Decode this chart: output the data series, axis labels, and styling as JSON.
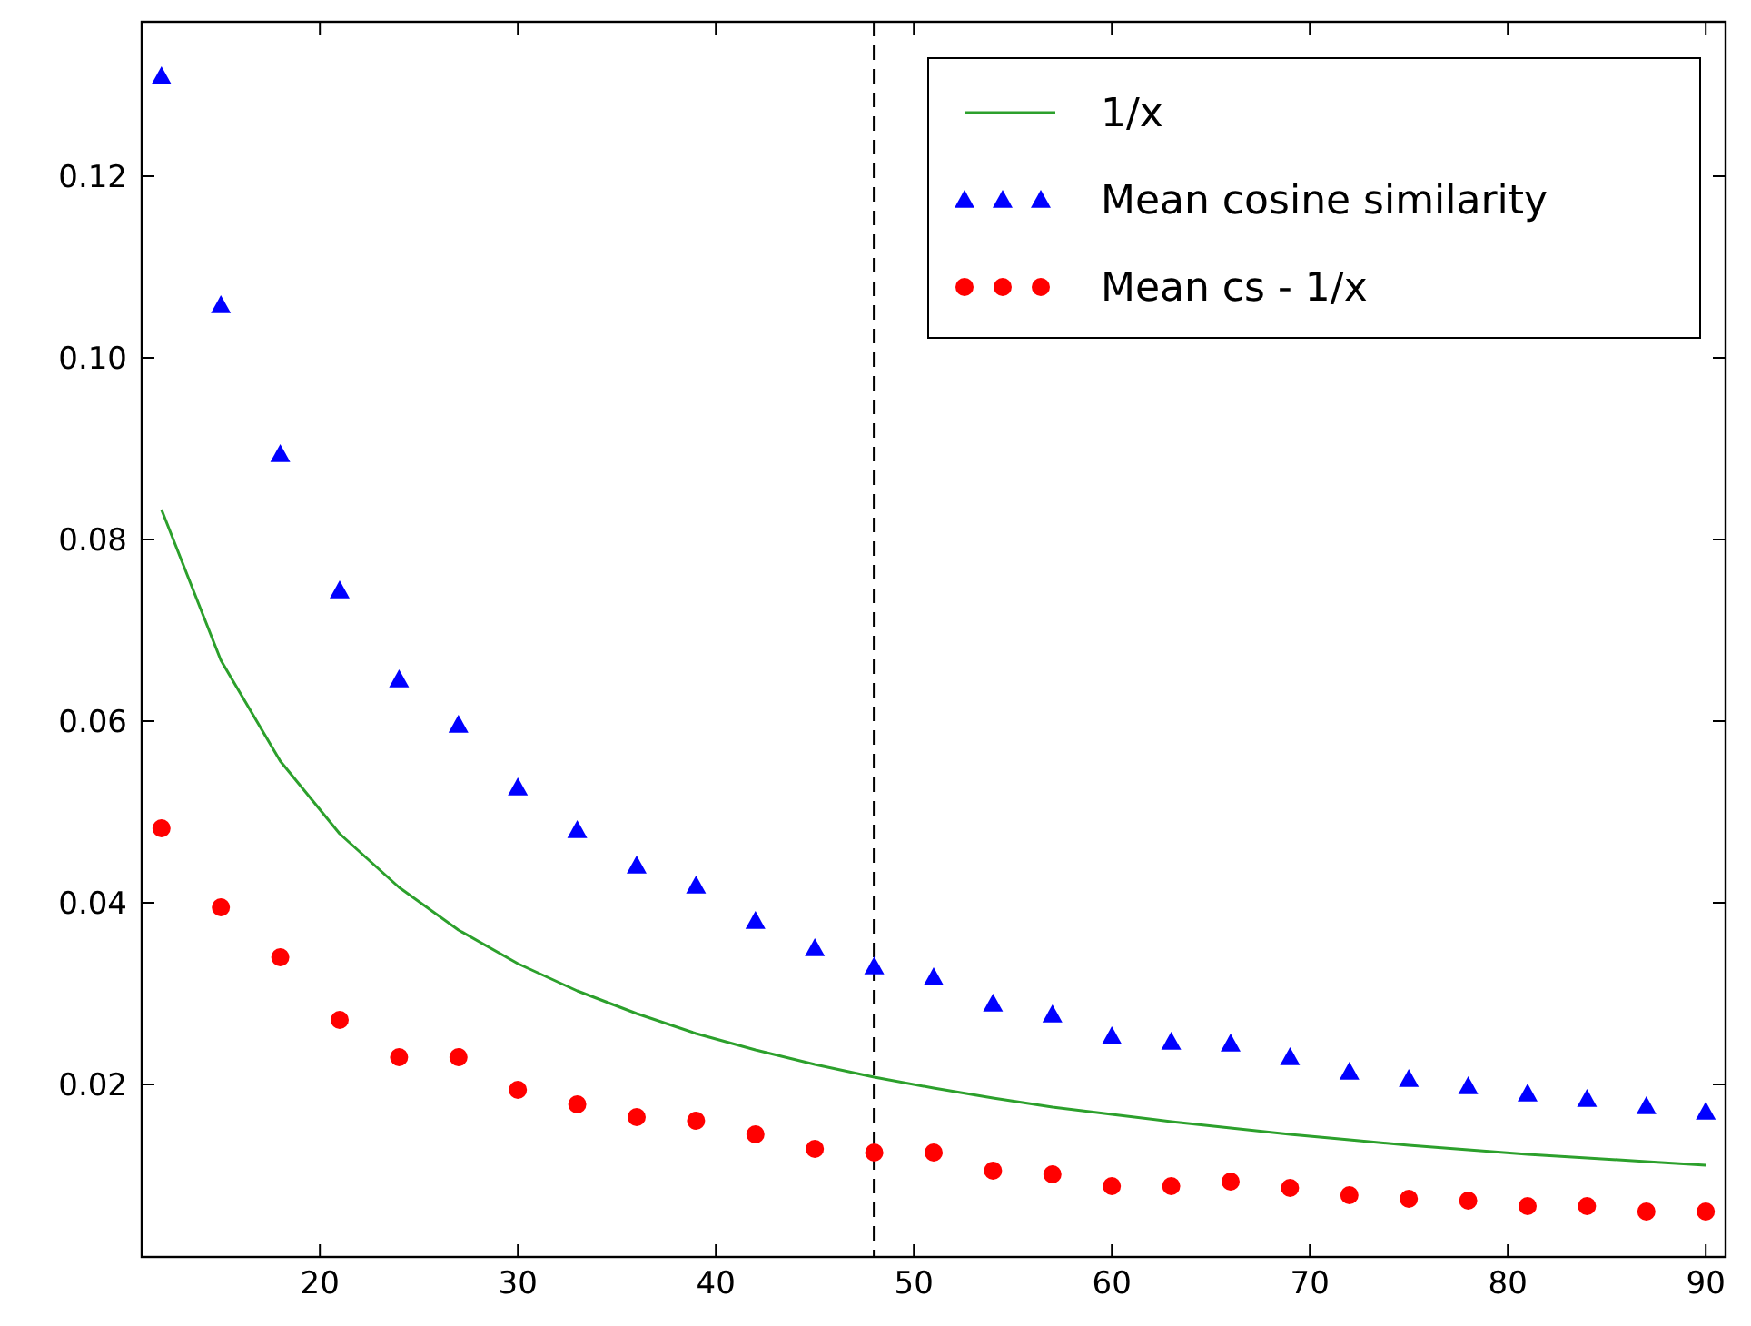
{
  "chart_data": {
    "type": "scatter",
    "x": [
      12,
      15,
      18,
      21,
      24,
      27,
      30,
      33,
      36,
      39,
      42,
      45,
      48,
      51,
      54,
      57,
      60,
      63,
      66,
      69,
      72,
      75,
      78,
      81,
      84,
      87,
      90
    ],
    "xlim": [
      11,
      91
    ],
    "xticks": [
      20,
      30,
      40,
      50,
      60,
      70,
      80,
      90
    ],
    "ylim": [
      0.001,
      0.137
    ],
    "yticks": [
      {
        "value": 0.02,
        "label": "0.02"
      },
      {
        "value": 0.04,
        "label": "0.04"
      },
      {
        "value": 0.06,
        "label": "0.06"
      },
      {
        "value": 0.08,
        "label": "0.08"
      },
      {
        "value": 0.1,
        "label": "0.10"
      },
      {
        "value": 0.12,
        "label": "0.12"
      }
    ],
    "grid": false,
    "legend": "top right",
    "series": [
      {
        "name": "1/x",
        "type": "line",
        "color": "#2ca02c",
        "line_style": "solid",
        "values": [
          0.0833,
          0.0667,
          0.0556,
          0.0476,
          0.0417,
          0.037,
          0.0333,
          0.0303,
          0.0278,
          0.0256,
          0.0238,
          0.0222,
          0.0208,
          0.0196,
          0.0185,
          0.0175,
          0.0167,
          0.0159,
          0.0152,
          0.0145,
          0.0139,
          0.0133,
          0.0128,
          0.0123,
          0.0119,
          0.0115,
          0.0111
        ]
      },
      {
        "name": "Mean cosine similarity",
        "color": "#0000ff",
        "marker": "triangle",
        "values": [
          0.131,
          0.1058,
          0.0894,
          0.0744,
          0.0646,
          0.0596,
          0.0527,
          0.048,
          0.0441,
          0.0419,
          0.038,
          0.035,
          0.033,
          0.0318,
          0.0289,
          0.0277,
          0.0253,
          0.0247,
          0.0245,
          0.023,
          0.0214,
          0.0206,
          0.0198,
          0.019,
          0.0184,
          0.0176,
          0.017
        ]
      },
      {
        "name": "Mean cs - 1/x",
        "color": "#ff0000",
        "marker": "circle",
        "values": [
          0.0482,
          0.0395,
          0.034,
          0.0271,
          0.023,
          0.023,
          0.0194,
          0.0178,
          0.0164,
          0.016,
          0.0145,
          0.0129,
          0.0125,
          0.0125,
          0.0105,
          0.0101,
          0.0088,
          0.0088,
          0.0093,
          0.0086,
          0.0078,
          0.0074,
          0.0072,
          0.0066,
          0.0066,
          0.006,
          0.006
        ]
      }
    ],
    "ref_lines": [
      {
        "axis": "x",
        "value": 48,
        "color": "#000000",
        "line_style": "dashed"
      }
    ]
  }
}
